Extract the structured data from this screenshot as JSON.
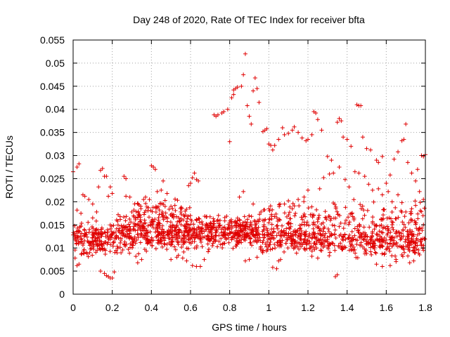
{
  "chart_data": {
    "type": "scatter",
    "title": "Day 248 of 2020, Rate Of TEC Index for receiver bfta",
    "xlabel": "GPS time / hours",
    "ylabel": "ROTI / TECUs",
    "xlim": [
      0,
      1.8
    ],
    "ylim": [
      0,
      0.055
    ],
    "xticks": [
      0,
      0.2,
      0.4,
      0.6,
      0.8,
      1.0,
      1.2,
      1.4,
      1.6,
      1.8
    ],
    "xtick_labels": [
      "0",
      "0.2",
      "0.4",
      "0.6",
      "0.8",
      "1",
      "1.2",
      "1.4",
      "1.6",
      "1.8"
    ],
    "yticks": [
      0,
      0.005,
      0.01,
      0.015,
      0.02,
      0.025,
      0.03,
      0.035,
      0.04,
      0.045,
      0.05,
      0.055
    ],
    "ytick_labels": [
      "0",
      "0.005",
      "0.01",
      "0.015",
      "0.02",
      "0.025",
      "0.03",
      "0.035",
      "0.04",
      "0.045",
      "0.05",
      "0.055"
    ],
    "grid": true,
    "marker": "+",
    "color": "#e00000",
    "series": [
      {
        "points": [
          [
            0.0,
            0.0265
          ],
          [
            0.01,
            0.0078
          ],
          [
            0.02,
            0.0275
          ],
          [
            0.03,
            0.0282
          ],
          [
            0.02,
            0.0182
          ],
          [
            0.04,
            0.0175
          ],
          [
            0.02,
            0.0062
          ],
          [
            0.03,
            0.0065
          ],
          [
            0.05,
            0.0215
          ],
          [
            0.06,
            0.0212
          ],
          [
            0.08,
            0.0205
          ],
          [
            0.1,
            0.0195
          ],
          [
            0.1,
            0.0165
          ],
          [
            0.12,
            0.0178
          ],
          [
            0.14,
            0.0268
          ],
          [
            0.15,
            0.0272
          ],
          [
            0.16,
            0.0255
          ],
          [
            0.17,
            0.0255
          ],
          [
            0.13,
            0.0232
          ],
          [
            0.19,
            0.0232
          ],
          [
            0.2,
            0.0218
          ],
          [
            0.18,
            0.0212
          ],
          [
            0.14,
            0.005
          ],
          [
            0.16,
            0.0045
          ],
          [
            0.17,
            0.004
          ],
          [
            0.18,
            0.0038
          ],
          [
            0.19,
            0.0035
          ],
          [
            0.2,
            0.0035
          ],
          [
            0.21,
            0.0048
          ],
          [
            0.23,
            0.0172
          ],
          [
            0.24,
            0.0168
          ],
          [
            0.26,
            0.0255
          ],
          [
            0.27,
            0.025
          ],
          [
            0.27,
            0.0212
          ],
          [
            0.29,
            0.021
          ],
          [
            0.3,
            0.0178
          ],
          [
            0.32,
            0.0165
          ],
          [
            0.33,
            0.0068
          ],
          [
            0.35,
            0.0075
          ],
          [
            0.36,
            0.0205
          ],
          [
            0.37,
            0.021
          ],
          [
            0.39,
            0.0205
          ],
          [
            0.4,
            0.0278
          ],
          [
            0.41,
            0.0275
          ],
          [
            0.42,
            0.027
          ],
          [
            0.43,
            0.0222
          ],
          [
            0.45,
            0.0225
          ],
          [
            0.46,
            0.0245
          ],
          [
            0.48,
            0.0218
          ],
          [
            0.47,
            0.019
          ],
          [
            0.5,
            0.019
          ],
          [
            0.52,
            0.0192
          ],
          [
            0.54,
            0.0165
          ],
          [
            0.55,
            0.0178
          ],
          [
            0.5,
            0.0075
          ],
          [
            0.53,
            0.008
          ],
          [
            0.56,
            0.0078
          ],
          [
            0.58,
            0.0072
          ],
          [
            0.59,
            0.0235
          ],
          [
            0.6,
            0.024
          ],
          [
            0.61,
            0.0252
          ],
          [
            0.62,
            0.0262
          ],
          [
            0.63,
            0.0248
          ],
          [
            0.64,
            0.0245
          ],
          [
            0.6,
            0.0162
          ],
          [
            0.63,
            0.0162
          ],
          [
            0.61,
            0.0062
          ],
          [
            0.63,
            0.006
          ],
          [
            0.65,
            0.006
          ],
          [
            0.67,
            0.0075
          ],
          [
            0.69,
            0.0092
          ],
          [
            0.68,
            0.0152
          ],
          [
            0.72,
            0.0388
          ],
          [
            0.73,
            0.0385
          ],
          [
            0.74,
            0.0388
          ],
          [
            0.76,
            0.0392
          ],
          [
            0.77,
            0.0395
          ],
          [
            0.79,
            0.04
          ],
          [
            0.8,
            0.033
          ],
          [
            0.81,
            0.0425
          ],
          [
            0.82,
            0.0432
          ],
          [
            0.82,
            0.0442
          ],
          [
            0.83,
            0.0445
          ],
          [
            0.84,
            0.0448
          ],
          [
            0.86,
            0.045
          ],
          [
            0.87,
            0.0475
          ],
          [
            0.88,
            0.052
          ],
          [
            0.89,
            0.0408
          ],
          [
            0.9,
            0.0385
          ],
          [
            0.91,
            0.0368
          ],
          [
            0.92,
            0.044
          ],
          [
            0.93,
            0.0468
          ],
          [
            0.94,
            0.0445
          ],
          [
            0.95,
            0.0415
          ],
          [
            0.97,
            0.0352
          ],
          [
            0.98,
            0.0355
          ],
          [
            0.99,
            0.0358
          ],
          [
            1.0,
            0.0325
          ],
          [
            1.01,
            0.0322
          ],
          [
            1.02,
            0.0312
          ],
          [
            1.03,
            0.0322
          ],
          [
            1.05,
            0.0335
          ],
          [
            1.07,
            0.036
          ],
          [
            1.08,
            0.0345
          ],
          [
            1.1,
            0.0348
          ],
          [
            1.12,
            0.0355
          ],
          [
            1.13,
            0.0362
          ],
          [
            1.15,
            0.035
          ],
          [
            1.17,
            0.0338
          ],
          [
            1.19,
            0.0332
          ],
          [
            1.2,
            0.0335
          ],
          [
            1.22,
            0.0345
          ],
          [
            1.23,
            0.0395
          ],
          [
            1.24,
            0.0392
          ],
          [
            1.25,
            0.0378
          ],
          [
            1.27,
            0.0355
          ],
          [
            1.3,
            0.0298
          ],
          [
            1.32,
            0.029
          ],
          [
            1.35,
            0.0372
          ],
          [
            1.36,
            0.038
          ],
          [
            1.37,
            0.0375
          ],
          [
            1.38,
            0.034
          ],
          [
            1.4,
            0.0335
          ],
          [
            1.42,
            0.032
          ],
          [
            1.45,
            0.041
          ],
          [
            1.46,
            0.0408
          ],
          [
            1.47,
            0.0408
          ],
          [
            1.48,
            0.034
          ],
          [
            1.5,
            0.0315
          ],
          [
            1.52,
            0.0312
          ],
          [
            1.55,
            0.029
          ],
          [
            1.56,
            0.0285
          ],
          [
            1.58,
            0.0298
          ],
          [
            1.6,
            0.024
          ],
          [
            1.62,
            0.0258
          ],
          [
            1.64,
            0.0292
          ],
          [
            1.66,
            0.0308
          ],
          [
            1.68,
            0.0332
          ],
          [
            1.69,
            0.0335
          ],
          [
            1.7,
            0.0368
          ],
          [
            1.71,
            0.0285
          ],
          [
            1.73,
            0.0262
          ],
          [
            1.75,
            0.0245
          ],
          [
            1.76,
            0.027
          ],
          [
            1.78,
            0.03
          ],
          [
            1.79,
            0.0298
          ],
          [
            1.8,
            0.0302
          ],
          [
            1.77,
            0.0222
          ],
          [
            1.79,
            0.0205
          ],
          [
            1.02,
            0.0058
          ],
          [
            1.04,
            0.0055
          ],
          [
            1.05,
            0.0072
          ],
          [
            1.06,
            0.0075
          ],
          [
            1.22,
            0.0082
          ],
          [
            1.25,
            0.0078
          ],
          [
            1.34,
            0.0038
          ],
          [
            1.35,
            0.0042
          ],
          [
            1.5,
            0.0088
          ],
          [
            1.52,
            0.0092
          ],
          [
            1.55,
            0.0065
          ],
          [
            1.58,
            0.006
          ],
          [
            1.62,
            0.0062
          ],
          [
            1.65,
            0.0075
          ],
          [
            1.68,
            0.0085
          ],
          [
            1.72,
            0.0068
          ],
          [
            1.74,
            0.0072
          ],
          [
            1.77,
            0.0085
          ],
          [
            1.79,
            0.0095
          ],
          [
            0.88,
            0.0072
          ],
          [
            0.9,
            0.0075
          ],
          [
            0.94,
            0.008
          ],
          [
            0.85,
            0.021
          ],
          [
            0.87,
            0.0222
          ],
          [
            0.92,
            0.0195
          ],
          [
            0.96,
            0.0178
          ],
          [
            1.0,
            0.0185
          ],
          [
            1.08,
            0.0195
          ],
          [
            1.1,
            0.0202
          ],
          [
            1.15,
            0.0205
          ],
          [
            1.18,
            0.021
          ],
          [
            1.2,
            0.0225
          ],
          [
            1.26,
            0.0228
          ],
          [
            1.28,
            0.0252
          ],
          [
            1.31,
            0.026
          ],
          [
            1.33,
            0.0262
          ],
          [
            1.36,
            0.0275
          ],
          [
            1.39,
            0.0248
          ],
          [
            1.41,
            0.0232
          ],
          [
            1.44,
            0.0265
          ],
          [
            1.46,
            0.0262
          ],
          [
            1.49,
            0.0255
          ],
          [
            1.51,
            0.0238
          ],
          [
            1.53,
            0.0225
          ],
          [
            1.56,
            0.0228
          ],
          [
            1.58,
            0.0215
          ],
          [
            1.61,
            0.0222
          ],
          [
            1.63,
            0.02
          ],
          [
            1.66,
            0.0215
          ],
          [
            1.68,
            0.0198
          ],
          [
            1.7,
            0.0178
          ],
          [
            1.73,
            0.0185
          ],
          [
            1.75,
            0.0192
          ]
        ]
      }
    ]
  }
}
